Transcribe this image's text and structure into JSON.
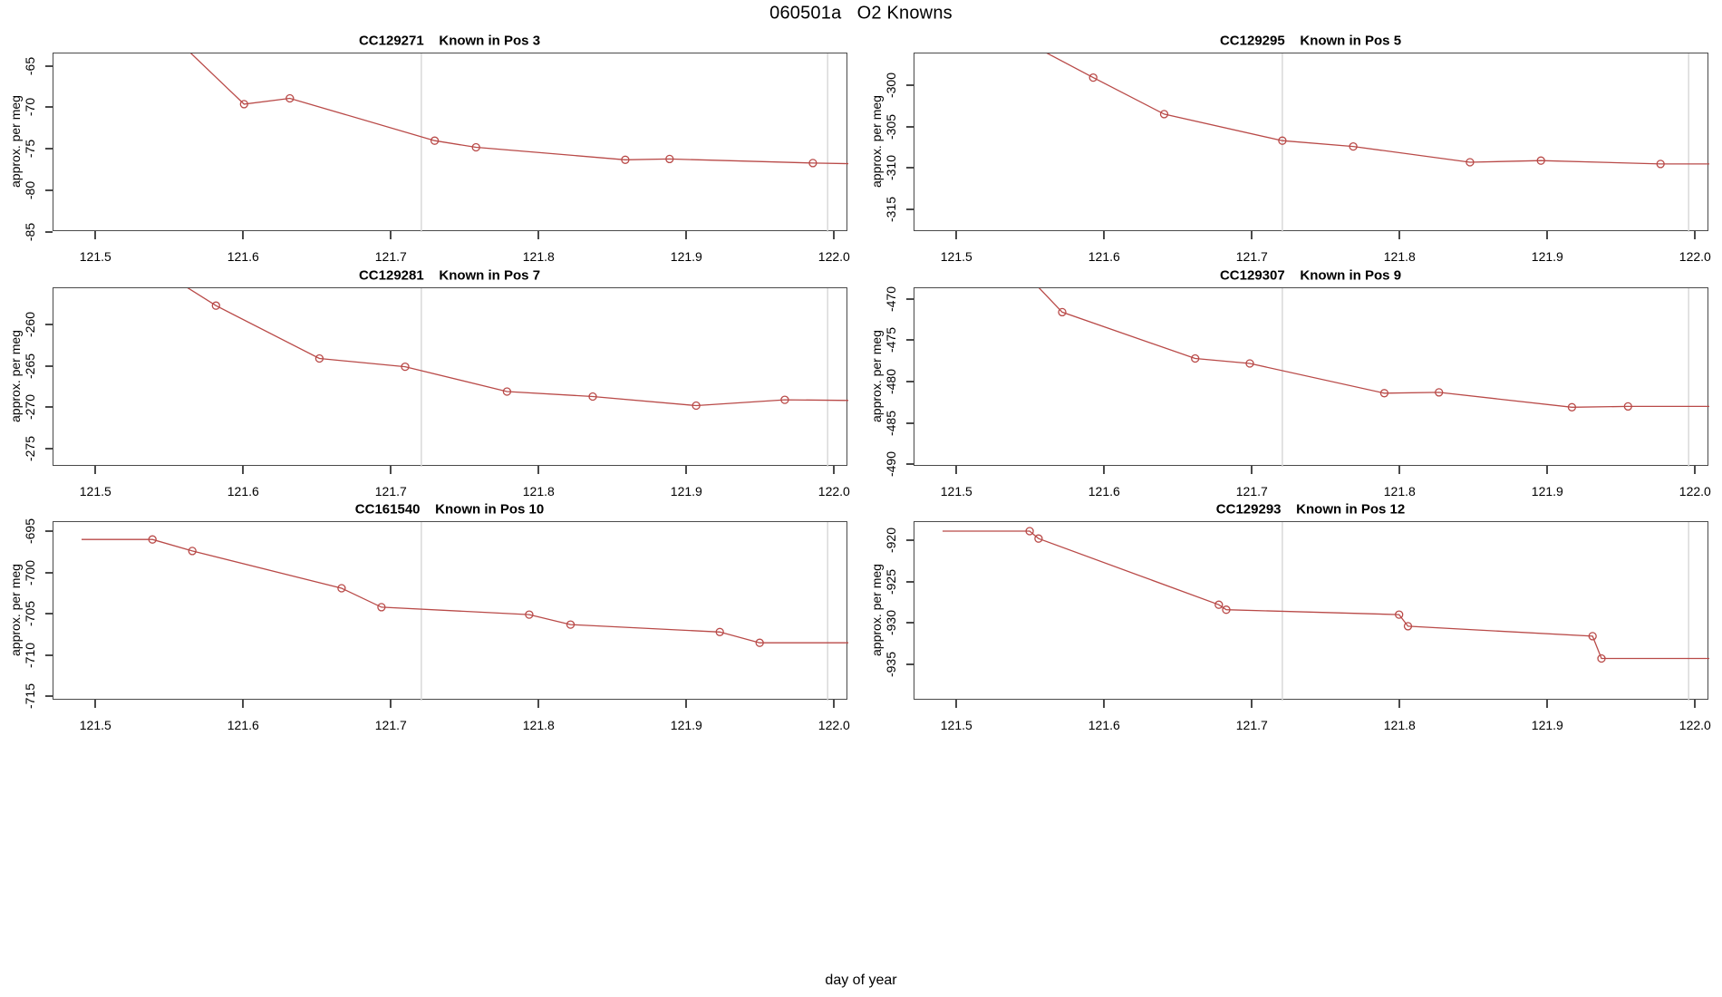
{
  "page_title": "060501a   O2 Knowns",
  "colors": {
    "series_line": "#b94a48",
    "reference_line": "#d6d6d6",
    "axis": "#4a4a4a",
    "text": "#000000",
    "background": "#ffffff"
  },
  "x_axis": {
    "label": "day of year",
    "ticks": [
      121.5,
      121.6,
      121.7,
      121.8,
      121.9,
      122.0
    ],
    "tick_labels": [
      "121.5",
      "121.6",
      "121.7",
      "121.8",
      "121.9",
      "122.0"
    ],
    "xlim": [
      121.471,
      122.009
    ]
  },
  "ref_lines_x": [
    121.72,
    121.995
  ],
  "chart_data": [
    {
      "type": "line",
      "series_id": "CC129271",
      "position_label": "Known in Pos 3",
      "title": "CC129271    Known in Pos 3",
      "ylabel": "approx. per meg",
      "marker": "open-circle",
      "legend": "none",
      "grid": "off",
      "y_ticks": [
        -65,
        -70,
        -75,
        -80,
        -85
      ],
      "ylim": [
        -63.4,
        -84.9
      ],
      "line": [
        [
          121.553,
          -61.5
        ],
        [
          121.6,
          -69.5
        ],
        [
          121.631,
          -68.8
        ],
        [
          121.729,
          -73.9
        ],
        [
          121.757,
          -74.7
        ],
        [
          121.858,
          -76.2
        ],
        [
          121.888,
          -76.1
        ],
        [
          121.985,
          -76.6
        ],
        [
          122.02,
          -76.7
        ]
      ],
      "markers": [
        [
          121.6,
          -69.5
        ],
        [
          121.631,
          -68.8
        ],
        [
          121.729,
          -73.9
        ],
        [
          121.757,
          -74.7
        ],
        [
          121.858,
          -76.2
        ],
        [
          121.888,
          -76.1
        ],
        [
          121.985,
          -76.6
        ]
      ]
    },
    {
      "type": "line",
      "series_id": "CC129295",
      "position_label": "Known in Pos 5",
      "title": "CC129295    Known in Pos 5",
      "ylabel": "approx. per meg",
      "marker": "open-circle",
      "legend": "none",
      "grid": "off",
      "y_ticks": [
        -300,
        -305,
        -310,
        -315
      ],
      "ylim": [
        -296.1,
        -317.6
      ],
      "line": [
        [
          121.558,
          -295.8
        ],
        [
          121.592,
          -299.0
        ],
        [
          121.64,
          -303.4
        ],
        [
          121.72,
          -306.6
        ],
        [
          121.768,
          -307.3
        ],
        [
          121.847,
          -309.2
        ],
        [
          121.895,
          -309.0
        ],
        [
          121.976,
          -309.4
        ],
        [
          122.02,
          -309.4
        ]
      ],
      "markers": [
        [
          121.592,
          -299.0
        ],
        [
          121.64,
          -303.4
        ],
        [
          121.72,
          -306.6
        ],
        [
          121.768,
          -307.3
        ],
        [
          121.847,
          -309.2
        ],
        [
          121.895,
          -309.0
        ],
        [
          121.976,
          -309.4
        ]
      ]
    },
    {
      "type": "line",
      "series_id": "CC129281",
      "position_label": "Known in Pos 7",
      "title": "CC129281    Known in Pos 7",
      "ylabel": "approx. per meg",
      "marker": "open-circle",
      "legend": "none",
      "grid": "off",
      "y_ticks": [
        -260,
        -265,
        -270,
        -275
      ],
      "ylim": [
        -255.5,
        -277.1
      ],
      "line": [
        [
          121.556,
          -254.8
        ],
        [
          121.581,
          -257.6
        ],
        [
          121.651,
          -264.0
        ],
        [
          121.709,
          -265.0
        ],
        [
          121.778,
          -268.0
        ],
        [
          121.836,
          -268.6
        ],
        [
          121.906,
          -269.7
        ],
        [
          121.966,
          -269.0
        ],
        [
          122.02,
          -269.1
        ]
      ],
      "markers": [
        [
          121.581,
          -257.6
        ],
        [
          121.651,
          -264.0
        ],
        [
          121.709,
          -265.0
        ],
        [
          121.778,
          -268.0
        ],
        [
          121.836,
          -268.6
        ],
        [
          121.906,
          -269.7
        ],
        [
          121.966,
          -269.0
        ]
      ]
    },
    {
      "type": "line",
      "series_id": "CC129307",
      "position_label": "Known in Pos 9",
      "title": "CC129307    Known in Pos 9",
      "ylabel": "approx. per meg",
      "marker": "open-circle",
      "legend": "none",
      "grid": "off",
      "y_ticks": [
        -470,
        -475,
        -480,
        -485,
        -490
      ],
      "ylim": [
        -468.6,
        -490.2
      ],
      "line": [
        [
          121.547,
          -467.0
        ],
        [
          121.571,
          -471.5
        ],
        [
          121.661,
          -477.1
        ],
        [
          121.698,
          -477.7
        ],
        [
          121.789,
          -481.3
        ],
        [
          121.826,
          -481.2
        ],
        [
          121.916,
          -483.0
        ],
        [
          121.954,
          -482.9
        ],
        [
          122.02,
          -482.9
        ]
      ],
      "markers": [
        [
          121.571,
          -471.5
        ],
        [
          121.661,
          -477.1
        ],
        [
          121.698,
          -477.7
        ],
        [
          121.789,
          -481.3
        ],
        [
          121.826,
          -481.2
        ],
        [
          121.916,
          -483.0
        ],
        [
          121.954,
          -482.9
        ]
      ]
    },
    {
      "type": "line",
      "series_id": "CC161540",
      "position_label": "Known in Pos 10",
      "title": "CC161540    Known in Pos 10",
      "ylabel": "approx. per meg",
      "marker": "open-circle",
      "legend": "none",
      "grid": "off",
      "y_ticks": [
        -695,
        -700,
        -705,
        -710,
        -715
      ],
      "ylim": [
        -693.8,
        -715.4
      ],
      "line": [
        [
          121.49,
          -695.9
        ],
        [
          121.538,
          -695.9
        ],
        [
          121.565,
          -697.3
        ],
        [
          121.666,
          -701.8
        ],
        [
          121.693,
          -704.1
        ],
        [
          121.793,
          -705.0
        ],
        [
          121.821,
          -706.2
        ],
        [
          121.922,
          -707.1
        ],
        [
          121.949,
          -708.4
        ],
        [
          122.02,
          -708.4
        ]
      ],
      "markers": [
        [
          121.538,
          -695.9
        ],
        [
          121.565,
          -697.3
        ],
        [
          121.666,
          -701.8
        ],
        [
          121.693,
          -704.1
        ],
        [
          121.793,
          -705.0
        ],
        [
          121.821,
          -706.2
        ],
        [
          121.922,
          -707.1
        ],
        [
          121.949,
          -708.4
        ]
      ]
    },
    {
      "type": "line",
      "series_id": "CC129293",
      "position_label": "Known in Pos 12",
      "title": "CC129293    Known in Pos 12",
      "ylabel": "approx. per meg",
      "marker": "open-circle",
      "legend": "none",
      "grid": "off",
      "y_ticks": [
        -920,
        -925,
        -930,
        -935
      ],
      "ylim": [
        -917.7,
        -939.3
      ],
      "line": [
        [
          121.49,
          -918.8
        ],
        [
          121.549,
          -918.8
        ],
        [
          121.555,
          -919.7
        ],
        [
          121.677,
          -927.7
        ],
        [
          121.682,
          -928.3
        ],
        [
          121.799,
          -928.9
        ],
        [
          121.805,
          -930.3
        ],
        [
          121.93,
          -931.5
        ],
        [
          121.936,
          -934.2
        ],
        [
          122.02,
          -934.2
        ]
      ],
      "markers": [
        [
          121.549,
          -918.8
        ],
        [
          121.555,
          -919.7
        ],
        [
          121.677,
          -927.7
        ],
        [
          121.682,
          -928.3
        ],
        [
          121.799,
          -928.9
        ],
        [
          121.805,
          -930.3
        ],
        [
          121.93,
          -931.5
        ],
        [
          121.936,
          -934.2
        ]
      ]
    }
  ]
}
